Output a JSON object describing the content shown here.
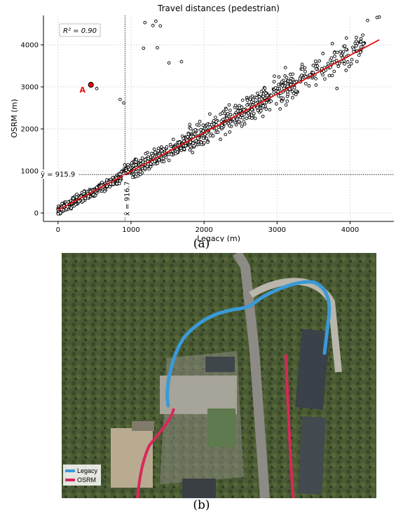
{
  "chart_data": {
    "type": "scatter",
    "title": "Travel distances (pedestrian)",
    "xlabel": "Legacy (m)",
    "ylabel": "OSRM (m)",
    "xlim": [
      -200,
      4600
    ],
    "ylim": [
      -200,
      4700
    ],
    "xticks": [
      "0",
      "1000",
      "2000",
      "3000",
      "4000"
    ],
    "yticks": [
      "0",
      "1000",
      "2000",
      "3000",
      "4000"
    ],
    "grid": true,
    "r2_label": "R² = 0.90",
    "mean_x": 916.7,
    "mean_y": 915.9,
    "mean_x_label": "x̄ = 916.7",
    "mean_y_label": "ȳ = 915.9",
    "regression": {
      "color": "#e01010",
      "x": [
        0,
        4400
      ],
      "y": [
        70,
        4120
      ]
    },
    "highlight_point": {
      "label": "A",
      "x": 450,
      "y": 3050,
      "color": "#e01010"
    },
    "outliers": [
      {
        "x": 1190,
        "y": 4530
      },
      {
        "x": 1300,
        "y": 4460
      },
      {
        "x": 1340,
        "y": 4560
      },
      {
        "x": 1400,
        "y": 4450
      },
      {
        "x": 1170,
        "y": 3920
      },
      {
        "x": 1360,
        "y": 3930
      },
      {
        "x": 1520,
        "y": 3570
      },
      {
        "x": 1690,
        "y": 3600
      },
      {
        "x": 530,
        "y": 2960
      },
      {
        "x": 850,
        "y": 2700
      },
      {
        "x": 900,
        "y": 2620
      },
      {
        "x": 4240,
        "y": 4580
      },
      {
        "x": 4370,
        "y": 4650
      },
      {
        "x": 4400,
        "y": 4660
      },
      {
        "x": 3820,
        "y": 2960
      },
      {
        "x": 4150,
        "y": 3950
      },
      {
        "x": 3950,
        "y": 4160
      },
      {
        "x": 4050,
        "y": 3900
      }
    ],
    "scatter_series": [
      {
        "x0": 0,
        "x1": 900,
        "slope": 0.93,
        "icpt": 60,
        "spread": 110,
        "n": 480
      },
      {
        "x0": 900,
        "x1": 1800,
        "slope": 0.93,
        "icpt": 60,
        "spread": 190,
        "n": 320
      },
      {
        "x0": 1800,
        "x1": 2800,
        "slope": 0.93,
        "icpt": 60,
        "spread": 320,
        "n": 260
      },
      {
        "x0": 2800,
        "x1": 4200,
        "slope": 0.93,
        "icpt": 80,
        "spread": 330,
        "n": 240
      }
    ]
  },
  "caption_a": "(a)",
  "caption_b": "(b)",
  "map": {
    "legend": [
      {
        "label": "Legacy",
        "color": "#3a9ad6"
      },
      {
        "label": "OSRM",
        "color": "#d8285a"
      }
    ]
  }
}
